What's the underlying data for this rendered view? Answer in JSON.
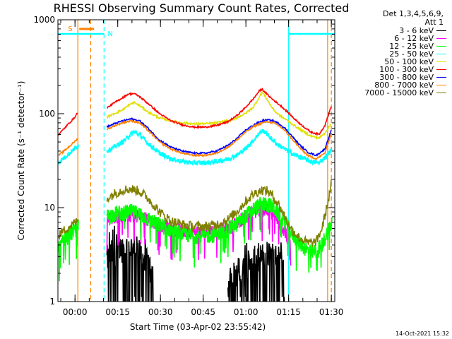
{
  "chart_data": {
    "type": "line",
    "title": "RHESSI Observing Summary Count Rates, Corrected",
    "xlabel": "Start Time (03-Apr-02 23:55:42)",
    "ylabel": "Corrected Count Rate (s⁻¹ detector⁻¹)",
    "x_unit": "minutes after start",
    "xlim": [
      -1.7,
      95.5
    ],
    "ylim": [
      1,
      1000
    ],
    "yscale": "log",
    "x_ticks": [
      {
        "t": 4.3,
        "label": "00:00"
      },
      {
        "t": 19.3,
        "label": "00:15"
      },
      {
        "t": 34.3,
        "label": "00:30"
      },
      {
        "t": 49.3,
        "label": "00:45"
      },
      {
        "t": 64.3,
        "label": "01:00"
      },
      {
        "t": 79.3,
        "label": "01:15"
      },
      {
        "t": 94.3,
        "label": "01:30"
      }
    ],
    "y_ticks": [
      {
        "v": 1,
        "label": "1"
      },
      {
        "v": 10,
        "label": "10"
      },
      {
        "v": 100,
        "label": "100"
      },
      {
        "v": 1000,
        "label": "1000"
      }
    ],
    "legend_header": [
      "Det 1,3,4,5,6,9,",
      "Att 1"
    ],
    "series": [
      {
        "name": "3 - 6 keV",
        "color": "#000000",
        "kind": "black",
        "segments": [
          {
            "x": [
              15.5,
              17,
              20,
              23,
              26,
              28,
              30,
              32
            ],
            "y": [
              2.8,
              3.2,
              3.6,
              3.8,
              3.5,
              3.0,
              2.5,
              1.5
            ]
          },
          {
            "x": [
              58,
              60,
              63,
              66,
              69,
              72,
              75,
              78
            ],
            "y": [
              1.5,
              1.9,
              2.3,
              2.6,
              3.0,
              3.2,
              3.0,
              2.4
            ]
          }
        ]
      },
      {
        "name": "6 - 12 keV",
        "color": "#ff00ff",
        "kind": "magenta",
        "segments": [
          {
            "x": [
              15.5,
              18,
              21,
              24,
              27,
              30,
              34,
              38,
              42,
              46,
              50,
              54,
              58,
              61,
              64,
              67,
              70,
              72,
              74,
              76,
              78,
              80
            ],
            "y": [
              7.5,
              8.0,
              8.2,
              8.3,
              8.0,
              7.4,
              6.6,
              6.0,
              5.6,
              5.5,
              5.5,
              5.6,
              6.0,
              6.8,
              8.0,
              9.0,
              9.5,
              9.3,
              8.4,
              7.0,
              5.6,
              4.0
            ]
          }
        ]
      },
      {
        "name": "12 - 25 keV",
        "color": "#00ff00",
        "kind": "green",
        "segments": [
          {
            "x": [
              -1.5,
              0,
              2,
              4,
              5.5
            ],
            "y": [
              3.5,
              4.2,
              5.0,
              5.6,
              6.2
            ]
          },
          {
            "x": [
              15.5,
              18,
              21,
              24,
              27,
              30,
              34,
              38,
              42,
              46,
              50,
              54,
              58,
              61,
              64,
              67,
              70,
              72,
              74,
              76,
              78,
              80,
              83,
              86,
              89,
              91,
              93,
              94.5
            ],
            "y": [
              8.0,
              8.5,
              8.8,
              9.0,
              8.5,
              7.5,
              6.5,
              5.8,
              5.3,
              5.0,
              5.0,
              5.2,
              5.8,
              6.6,
              8.0,
              9.6,
              11.0,
              10.8,
              10.0,
              8.5,
              7.0,
              5.5,
              4.2,
              3.5,
              3.3,
              4.0,
              5.5,
              7.0
            ]
          }
        ]
      },
      {
        "name": "25 - 50 keV",
        "color": "#00ffff",
        "kind": "cyan",
        "segments": [
          {
            "x": [
              -1.5,
              0,
              2,
              4,
              5.5
            ],
            "y": [
              30,
              33,
              37,
              42,
              46
            ]
          },
          {
            "x": [
              15.5,
              18,
              21,
              23,
              25,
              27,
              30,
              34,
              38,
              42,
              46,
              50,
              54,
              58,
              61,
              64,
              67,
              69,
              70,
              71,
              73,
              75,
              77,
              79,
              81,
              84,
              87,
              90,
              92,
              94.5
            ],
            "y": [
              40,
              44,
              50,
              57,
              64,
              60,
              48,
              38,
              33,
              31,
              30,
              30,
              31,
              33,
              36,
              42,
              52,
              62,
              66,
              64,
              55,
              48,
              44,
              40,
              37,
              34,
              31,
              30,
              34,
              42
            ]
          }
        ]
      },
      {
        "name": "50 - 100 keV",
        "color": "#e0e000",
        "kind": "yellow",
        "segments": [
          {
            "x": [
              15.5,
              18,
              21,
              23,
              25,
              27,
              30,
              34,
              38,
              42,
              46,
              50,
              54,
              58,
              61,
              64,
              67,
              69,
              70,
              71,
              73,
              75,
              77,
              79,
              81,
              84,
              87,
              90,
              92,
              94.5
            ],
            "y": [
              92,
              100,
              110,
              122,
              132,
              122,
              104,
              90,
              84,
              80,
              78,
              78,
              80,
              84,
              90,
              100,
              118,
              150,
              170,
              155,
              122,
              102,
              92,
              84,
              76,
              66,
              58,
              55,
              62,
              80
            ]
          }
        ]
      },
      {
        "name": "100 - 300 keV",
        "color": "#ff0000",
        "kind": "red",
        "segments": [
          {
            "x": [
              -1.5,
              0,
              2,
              4,
              5.5
            ],
            "y": [
              60,
              67,
              78,
              90,
              105
            ]
          },
          {
            "x": [
              15.5,
              18,
              21,
              23,
              25,
              27,
              30,
              34,
              38,
              42,
              46,
              50,
              54,
              58,
              61,
              64,
              67,
              69,
              70,
              71,
              73,
              75,
              77,
              79,
              81,
              84,
              87,
              90,
              92,
              94.5
            ],
            "y": [
              115,
              130,
              148,
              162,
              164,
              152,
              128,
              100,
              84,
              76,
              72,
              72,
              75,
              82,
              95,
              115,
              145,
              175,
              182,
              170,
              148,
              132,
              118,
              104,
              90,
              75,
              64,
              60,
              75,
              125
            ]
          }
        ]
      },
      {
        "name": "300 - 800 keV",
        "color": "#0000ff",
        "kind": "blue",
        "segments": [
          {
            "x": [
              15.5,
              18,
              21,
              24,
              27,
              30,
              34,
              38,
              42,
              46,
              50,
              54,
              58,
              61,
              64,
              67,
              70,
              72,
              74,
              76,
              78,
              80,
              83,
              86,
              89,
              92,
              94.5
            ],
            "y": [
              72,
              78,
              84,
              88,
              84,
              70,
              52,
              44,
              40,
              38,
              38,
              40,
              46,
              54,
              66,
              76,
              84,
              86,
              84,
              78,
              70,
              60,
              47,
              39,
              36,
              42,
              70
            ]
          }
        ]
      },
      {
        "name": "800 - 7000 keV",
        "color": "#ff8000",
        "kind": "orange",
        "segments": [
          {
            "x": [
              -1.5,
              0,
              2,
              4,
              5.5
            ],
            "y": [
              36,
              39,
              44,
              50,
              55
            ]
          },
          {
            "x": [
              15.5,
              18,
              21,
              24,
              27,
              30,
              34,
              38,
              42,
              46,
              50,
              54,
              58,
              61,
              64,
              67,
              70,
              72,
              74,
              76,
              78,
              80,
              83,
              86,
              89,
              92,
              94.5
            ],
            "y": [
              68,
              74,
              80,
              84,
              80,
              66,
              50,
              42,
              38,
              36,
              36,
              38,
              44,
              52,
              63,
              73,
              80,
              82,
              80,
              74,
              66,
              56,
              44,
              36,
              33,
              38,
              64
            ]
          }
        ]
      },
      {
        "name": "7000 - 15000 keV",
        "color": "#808000",
        "kind": "olive",
        "segments": [
          {
            "x": [
              -1.5,
              0,
              2,
              4,
              5.5
            ],
            "y": [
              5.0,
              5.6,
              6.2,
              6.8,
              7.2
            ]
          },
          {
            "x": [
              15.5,
              18,
              21,
              24,
              27,
              30,
              34,
              38,
              42,
              46,
              50,
              54,
              58,
              61,
              64,
              67,
              70,
              72,
              74,
              76,
              78,
              80,
              83,
              86,
              89,
              91,
              93,
              94.5
            ],
            "y": [
              12.5,
              14,
              15.5,
              15.8,
              15.0,
              12.5,
              9.0,
              7.2,
              6.6,
              6.3,
              6.3,
              6.6,
              7.5,
              9.0,
              11.5,
              14.0,
              15.5,
              15.0,
              13.0,
              10.5,
              8.0,
              6.0,
              4.8,
              4.2,
              4.3,
              6.0,
              11.0,
              19.0
            ]
          }
        ]
      }
    ],
    "flags": {
      "saa": {
        "label": "S",
        "color": "#ff8000",
        "x": [
          5.3,
          10.0
        ]
      },
      "night": {
        "label": "N",
        "color": "#00ffff",
        "segments": [
          [
            -1.7,
            14.5
          ],
          [
            79.3,
            95.5
          ]
        ]
      }
    },
    "vlines": [
      {
        "t": 5.3,
        "color": "#ff8000",
        "dash": false
      },
      {
        "t": 9.8,
        "color": "#ff8000",
        "dash": true
      },
      {
        "t": 14.5,
        "color": "#00ffff",
        "dash": true
      },
      {
        "t": 79.3,
        "color": "#00ffff",
        "dash": false
      },
      {
        "t": 93.0,
        "color": "#ff8000",
        "dash": false
      },
      {
        "t": 94.3,
        "color": "#ff8000",
        "dash": true
      }
    ]
  },
  "footer": {
    "date_stamp": "14-Oct-2021 15:32"
  }
}
